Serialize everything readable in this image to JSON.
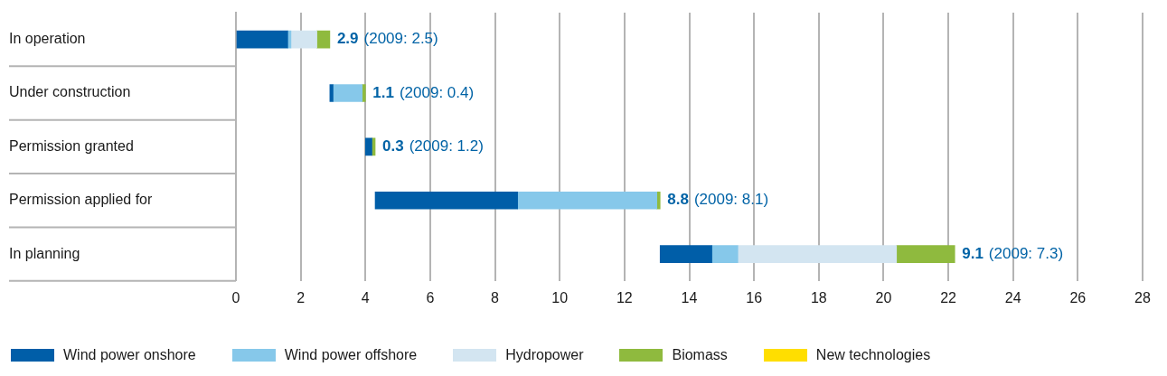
{
  "chart_data": {
    "type": "bar",
    "orientation": "horizontal",
    "categories": [
      "In operation",
      "Under construction",
      "Permission granted",
      "Permission applied for",
      "In planning"
    ],
    "series": [
      {
        "name": "Wind power onshore",
        "color": "#005ea8",
        "base": [
          0,
          2.9,
          4.0,
          4.3,
          13.1
        ],
        "values": [
          1.6,
          0.1,
          0.2,
          4.4,
          1.6
        ]
      },
      {
        "name": "Wind power offshore",
        "color": "#86c8ea",
        "base": [
          1.6,
          3.0,
          null,
          8.7,
          14.7
        ],
        "values": [
          0.1,
          0.9,
          null,
          4.3,
          0.8
        ]
      },
      {
        "name": "Hydropower",
        "color": "#d3e5f1",
        "base": [
          1.7,
          null,
          null,
          null,
          15.5
        ],
        "values": [
          0.8,
          null,
          null,
          null,
          4.9
        ]
      },
      {
        "name": "Biomass",
        "color": "#8fba3e",
        "base": [
          2.5,
          3.9,
          4.2,
          13.0,
          20.4
        ],
        "values": [
          0.4,
          0.1,
          0.1,
          0.1,
          1.8
        ]
      },
      {
        "name": "New technologies",
        "color": "#ffde00",
        "values": [
          null,
          null,
          null,
          null,
          null
        ]
      }
    ],
    "totals": [
      "2.9",
      "1.1",
      "0.3",
      "8.8",
      "9.1"
    ],
    "annotations": [
      "(2009: 2.5)",
      "(2009: 0.4)",
      "(2009: 1.2)",
      "(2009: 8.1)",
      "(2009: 7.3)"
    ],
    "xlim": [
      0,
      28
    ],
    "xticks": [
      0,
      2,
      4,
      6,
      8,
      10,
      12,
      14,
      16,
      18,
      20,
      22,
      24,
      26,
      28
    ],
    "grid": "x",
    "legend": "bottom"
  }
}
